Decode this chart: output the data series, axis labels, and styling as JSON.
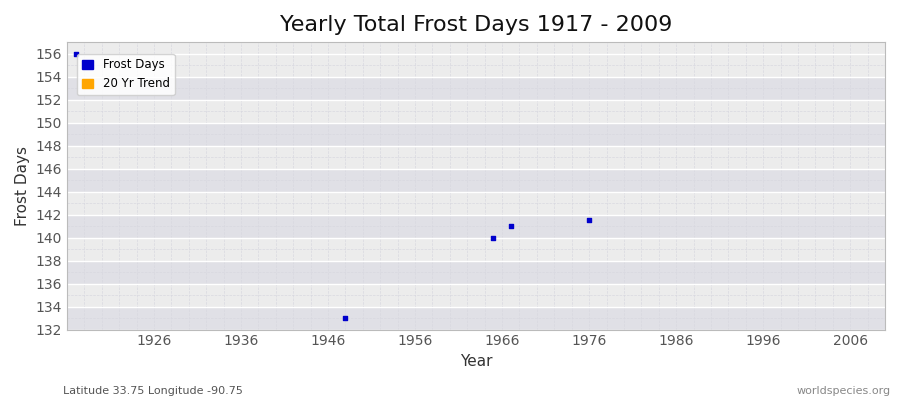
{
  "title": "Yearly Total Frost Days 1917 - 2009",
  "xlabel": "Year",
  "ylabel": "Frost Days",
  "ylim": [
    132,
    157
  ],
  "xlim": [
    1916,
    2010
  ],
  "yticks": [
    132,
    134,
    136,
    138,
    140,
    142,
    144,
    146,
    148,
    150,
    152,
    154,
    156
  ],
  "xticks": [
    1926,
    1936,
    1946,
    1956,
    1966,
    1976,
    1986,
    1996,
    2006
  ],
  "frost_days_x": [
    1917,
    1948,
    1965,
    1967,
    1976
  ],
  "frost_days_y": [
    156,
    133,
    140,
    141,
    141.5
  ],
  "frost_color": "#0000cc",
  "trend_color": "#ffa500",
  "fig_bg": "#ffffff",
  "plot_bg_light": "#ececec",
  "plot_bg_dark": "#e0e0e6",
  "grid_major_color": "#ffffff",
  "grid_minor_color": "#d8d8e0",
  "legend_labels": [
    "Frost Days",
    "20 Yr Trend"
  ],
  "subtitle_left": "Latitude 33.75 Longitude -90.75",
  "subtitle_right": "worldspecies.org",
  "title_fontsize": 16,
  "axis_label_fontsize": 11,
  "tick_fontsize": 10,
  "marker_size": 3
}
